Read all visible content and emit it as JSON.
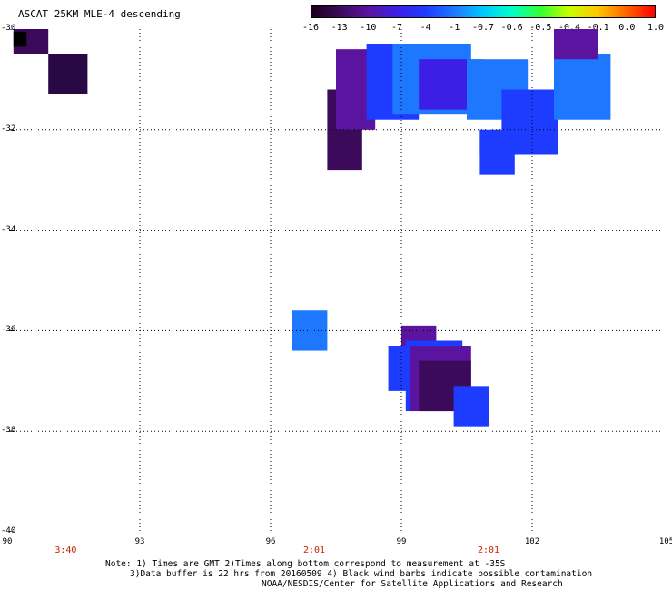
{
  "title": "ASCAT 25KM MLE-4 descending",
  "colorbar": {
    "labels": [
      "-16",
      "-13",
      "-10",
      "-7",
      "-4",
      "-1",
      "-0.7",
      "-0.6",
      "-0.5",
      "-0.4",
      "-0.1",
      "0.0",
      "1.0"
    ],
    "colors": [
      "#1a001a",
      "#3c0a5a",
      "#5a14a0",
      "#3c1ee6",
      "#1e3cff",
      "#1e78ff",
      "#00c8ff",
      "#00ffc8",
      "#32ff32",
      "#c8ff00",
      "#ffc800",
      "#ff6400",
      "#ff0000"
    ]
  },
  "map": {
    "lon_range": [
      90,
      105
    ],
    "lat_range": [
      -40,
      -30
    ],
    "lon_ticks": [
      "90",
      "93",
      "96",
      "99",
      "102",
      "105"
    ],
    "lat_ticks": [
      "-30",
      "-32",
      "-34",
      "-36",
      "-38",
      "-40"
    ],
    "time_labels": [
      {
        "lon": 91.3,
        "text": "3:40"
      },
      {
        "lon": 97,
        "text": "2:01"
      },
      {
        "lon": 101,
        "text": "2:01"
      }
    ],
    "cells": [
      {
        "lon": 90.1,
        "lat": -30.0,
        "w": 0.8,
        "h": 0.5,
        "c": "#3c0a5a"
      },
      {
        "lon": 90.9,
        "lat": -30.5,
        "w": 0.9,
        "h": 0.8,
        "c": "#2a0845"
      },
      {
        "lon": 90.1,
        "lat": -30.05,
        "w": 0.3,
        "h": 0.3,
        "c": "#000000"
      },
      {
        "lon": 97.3,
        "lat": -31.2,
        "w": 0.8,
        "h": 1.6,
        "c": "#3c0a5a"
      },
      {
        "lon": 97.5,
        "lat": -30.4,
        "w": 0.9,
        "h": 1.6,
        "c": "#5a14a0"
      },
      {
        "lon": 98.2,
        "lat": -30.3,
        "w": 1.2,
        "h": 1.5,
        "c": "#1e3cff"
      },
      {
        "lon": 98.8,
        "lat": -30.3,
        "w": 1.8,
        "h": 1.4,
        "c": "#1e78ff"
      },
      {
        "lon": 99.4,
        "lat": -30.6,
        "w": 1.5,
        "h": 1.0,
        "c": "#3c1ee6"
      },
      {
        "lon": 100.5,
        "lat": -30.6,
        "w": 1.4,
        "h": 1.2,
        "c": "#1e78ff"
      },
      {
        "lon": 101.3,
        "lat": -31.2,
        "w": 1.3,
        "h": 1.3,
        "c": "#1e3cff"
      },
      {
        "lon": 100.8,
        "lat": -32.0,
        "w": 1.5,
        "h": 0.5,
        "c": "#1e3cff"
      },
      {
        "lon": 100.8,
        "lat": -32.0,
        "w": 0.8,
        "h": 0.9,
        "c": "#1e3cff"
      },
      {
        "lon": 102.5,
        "lat": -30.5,
        "w": 1.3,
        "h": 1.3,
        "c": "#1e78ff"
      },
      {
        "lon": 102.5,
        "lat": -30.0,
        "w": 1.0,
        "h": 0.6,
        "c": "#5a14a0"
      },
      {
        "lon": 96.5,
        "lat": -35.6,
        "w": 0.8,
        "h": 0.8,
        "c": "#1e78ff"
      },
      {
        "lon": 98.7,
        "lat": -36.3,
        "w": 0.9,
        "h": 0.9,
        "c": "#1e3cff"
      },
      {
        "lon": 99.0,
        "lat": -35.9,
        "w": 0.8,
        "h": 0.4,
        "c": "#5a14a0"
      },
      {
        "lon": 99.1,
        "lat": -36.2,
        "w": 1.3,
        "h": 1.4,
        "c": "#1e3cff"
      },
      {
        "lon": 99.2,
        "lat": -36.3,
        "w": 1.4,
        "h": 1.3,
        "c": "#5a14a0"
      },
      {
        "lon": 99.4,
        "lat": -36.6,
        "w": 1.2,
        "h": 1.0,
        "c": "#3c0a5a"
      },
      {
        "lon": 100.2,
        "lat": -37.1,
        "w": 0.8,
        "h": 0.8,
        "c": "#1e3cff"
      }
    ]
  },
  "notes": {
    "line1": "Note: 1) Times are GMT 2)Times along bottom correspond to measurement at -35S",
    "line2": "3)Data buffer is 22 hrs from 20160509 4) Black wind barbs indicate possible contamination",
    "line3": "NOAA/NESDIS/Center for Satellite Applications and Research"
  }
}
